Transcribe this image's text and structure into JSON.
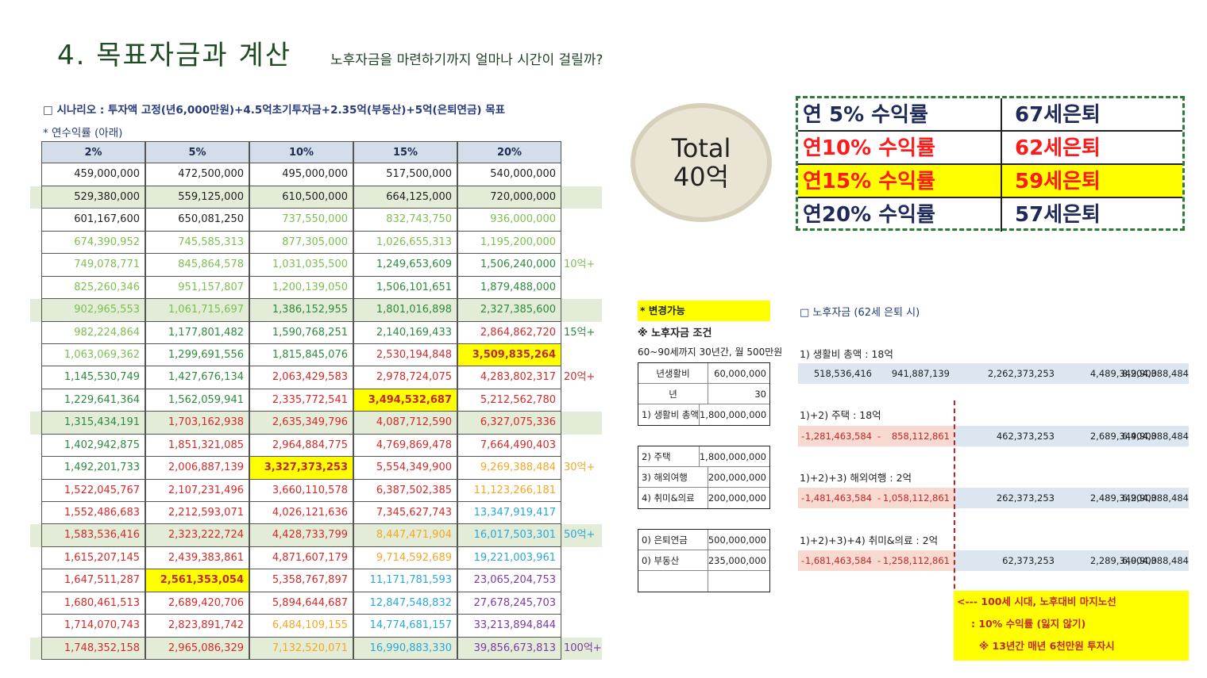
{
  "header": {
    "title": "4. 목표자금과 계산",
    "subtitle": "노후자금을 마련하기까지 얼마나 시간이 걸릴까?"
  },
  "scenario": {
    "text": "□ 시나리오 : 투자액 고정(년6,000만원)+4.5억초기투자금+2.35억(부동산)+5억(은퇴연금) 목표",
    "rate_note": "* 연수익률 (아래)"
  },
  "main_table": {
    "headers": [
      "2%",
      "5%",
      "10%",
      "15%",
      "20%"
    ],
    "rows": [
      {
        "cells": [
          "459,000,000",
          "472,500,000",
          "495,000,000",
          "517,500,000",
          "540,000,000"
        ],
        "note": ""
      },
      {
        "cells": [
          "529,380,000",
          "559,125,000",
          "610,500,000",
          "664,125,000",
          "720,000,000"
        ],
        "note": ""
      },
      {
        "cells": [
          "601,167,600",
          "650,081,250",
          "737,550,000",
          "832,743,750",
          "936,000,000"
        ],
        "note": ""
      },
      {
        "cells": [
          "674,390,952",
          "745,585,313",
          "877,305,000",
          "1,026,655,313",
          "1,195,200,000"
        ],
        "note": ""
      },
      {
        "cells": [
          "749,078,771",
          "845,864,578",
          "1,031,035,500",
          "1,249,653,609",
          "1,506,240,000"
        ],
        "note": "10억+"
      },
      {
        "cells": [
          "825,260,346",
          "951,157,807",
          "1,200,139,050",
          "1,506,101,651",
          "1,879,488,000"
        ],
        "note": ""
      },
      {
        "cells": [
          "902,965,553",
          "1,061,715,697",
          "1,386,152,955",
          "1,801,016,898",
          "2,327,385,600"
        ],
        "note": ""
      },
      {
        "cells": [
          "982,224,864",
          "1,177,801,482",
          "1,590,768,251",
          "2,140,169,433",
          "2,864,862,720"
        ],
        "note": "15억+"
      },
      {
        "cells": [
          "1,063,069,362",
          "1,299,691,556",
          "1,815,845,076",
          "2,530,194,848",
          "3,509,835,264"
        ],
        "note": ""
      },
      {
        "cells": [
          "1,145,530,749",
          "1,427,676,134",
          "2,063,429,583",
          "2,978,724,075",
          "4,283,802,317"
        ],
        "note": "20억+"
      },
      {
        "cells": [
          "1,229,641,364",
          "1,562,059,941",
          "2,335,772,541",
          "3,494,532,687",
          "5,212,562,780"
        ],
        "note": ""
      },
      {
        "cells": [
          "1,315,434,191",
          "1,703,162,938",
          "2,635,349,796",
          "4,087,712,590",
          "6,327,075,336"
        ],
        "note": ""
      },
      {
        "cells": [
          "1,402,942,875",
          "1,851,321,085",
          "2,964,884,775",
          "4,769,869,478",
          "7,664,490,403"
        ],
        "note": ""
      },
      {
        "cells": [
          "1,492,201,733",
          "2,006,887,139",
          "3,327,373,253",
          "5,554,349,900",
          "9,269,388,484"
        ],
        "note": "30억+"
      },
      {
        "cells": [
          "1,522,045,767",
          "2,107,231,496",
          "3,660,110,578",
          "6,387,502,385",
          "11,123,266,181"
        ],
        "note": ""
      },
      {
        "cells": [
          "1,552,486,683",
          "2,212,593,071",
          "4,026,121,636",
          "7,345,627,743",
          "13,347,919,417"
        ],
        "note": ""
      },
      {
        "cells": [
          "1,583,536,416",
          "2,323,222,724",
          "4,428,733,799",
          "8,447,471,904",
          "16,017,503,301"
        ],
        "note": "50억+"
      },
      {
        "cells": [
          "1,615,207,145",
          "2,439,383,861",
          "4,871,607,179",
          "9,714,592,689",
          "19,221,003,961"
        ],
        "note": ""
      },
      {
        "cells": [
          "1,647,511,287",
          "2,561,353,054",
          "5,358,767,897",
          "11,171,781,593",
          "23,065,204,753"
        ],
        "note": ""
      },
      {
        "cells": [
          "1,680,461,513",
          "2,689,420,706",
          "5,894,644,687",
          "12,847,548,832",
          "27,678,245,703"
        ],
        "note": ""
      },
      {
        "cells": [
          "1,714,070,743",
          "2,823,891,742",
          "6,484,109,155",
          "14,774,681,157",
          "33,213,894,844"
        ],
        "note": ""
      },
      {
        "cells": [
          "1,748,352,158",
          "2,965,086,329",
          "7,132,520,071",
          "16,990,883,330",
          "39,856,673,813"
        ],
        "note": "100억+"
      }
    ],
    "colors": {
      "black": "#222222",
      "green": "#7cbf50",
      "dark_green": "#2e8a3e",
      "red": "#d42a2a",
      "orange": "#f5a623",
      "blue": "#2aa7d8",
      "purple": "#7a3aa8",
      "highlight": "#ffff00",
      "shade": "#e3ecd7"
    }
  },
  "total": {
    "line1": "Total",
    "line2": "40억"
  },
  "retire_table": {
    "rows": [
      {
        "rate": "연 5% 수익률",
        "age": "67세은퇴",
        "color": "#1f2a5a",
        "highlight": false
      },
      {
        "rate": "연10% 수익률",
        "age": "62세은퇴",
        "color": "#ff1a1a",
        "highlight": false
      },
      {
        "rate": "연15% 수익률",
        "age": "59세은퇴",
        "color": "#ff1a1a",
        "highlight": true
      },
      {
        "rate": "연20% 수익률",
        "age": "57세은퇴",
        "color": "#1f2a5a",
        "highlight": false
      }
    ]
  },
  "conditions": {
    "tag": "* 변경가능",
    "title": "※ 노후자금 조건",
    "sub": "60~90세까지 30년간, 월 500만원",
    "group1": [
      {
        "k": "년생활비",
        "v": "60,000,000"
      },
      {
        "k": "년",
        "v": "30"
      },
      {
        "k": "1) 생활비 총액",
        "v": "1,800,000,000"
      }
    ],
    "group2": [
      {
        "k": "2) 주택",
        "v": "1,800,000,000"
      },
      {
        "k": "3) 해외여행",
        "v": "200,000,000"
      },
      {
        "k": "4) 취미&의료",
        "v": "200,000,000"
      }
    ],
    "group3": [
      {
        "k": "0) 은퇴연금",
        "v": "500,000,000"
      },
      {
        "k": "0) 부동산",
        "v": "235,000,000"
      },
      {
        "k": "",
        "v": ""
      }
    ]
  },
  "retirement_funds": {
    "title": "□ 노후자금 (62세 은퇴 시)",
    "blocks": [
      {
        "label": "1) 생활비 총액 : 18억",
        "neg": [],
        "pos": [
          "518,536,416",
          "941,887,139",
          "2,262,373,253",
          "4,489,349,900",
          "8,204,388,484"
        ]
      },
      {
        "label": "1)+2) 주택 : 18억",
        "neg": [
          "1,281,463,584",
          "858,112,861"
        ],
        "pos": [
          "462,373,253",
          "2,689,349,900",
          "6,404,388,484"
        ]
      },
      {
        "label": "1)+2)+3) 해외여행 : 2억",
        "neg": [
          "1,481,463,584",
          "1,058,112,861"
        ],
        "pos": [
          "262,373,253",
          "2,489,349,900",
          "6,204,388,484"
        ]
      },
      {
        "label": "1)+2)+3)+4) 취미&의료 : 2억",
        "neg": [
          "1,681,463,584",
          "1,258,112,861"
        ],
        "pos": [
          "62,373,253",
          "2,289,349,900",
          "6,004,388,484"
        ]
      }
    ],
    "minus": "-",
    "note_lines": [
      "<--- 100세 시대, 노후대비 마지노선",
      ": 10% 수익률 (잃지 않기)",
      "※ 13년간 매년 6천만원 투자시"
    ]
  }
}
